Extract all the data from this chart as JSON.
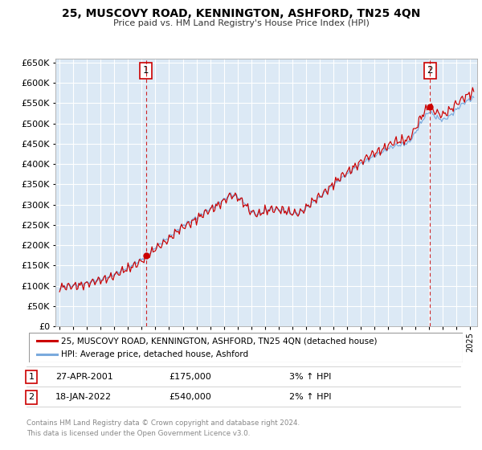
{
  "title": "25, MUSCOVY ROAD, KENNINGTON, ASHFORD, TN25 4QN",
  "subtitle": "Price paid vs. HM Land Registry's House Price Index (HPI)",
  "legend_line1": "25, MUSCOVY ROAD, KENNINGTON, ASHFORD, TN25 4QN (detached house)",
  "legend_line2": "HPI: Average price, detached house, Ashford",
  "transaction1_date": "27-APR-2001",
  "transaction1_price": "£175,000",
  "transaction1_hpi": "3% ↑ HPI",
  "transaction2_date": "18-JAN-2022",
  "transaction2_price": "£540,000",
  "transaction2_hpi": "2% ↑ HPI",
  "ylim": [
    0,
    660000
  ],
  "yticks": [
    0,
    50000,
    100000,
    150000,
    200000,
    250000,
    300000,
    350000,
    400000,
    450000,
    500000,
    550000,
    600000,
    650000
  ],
  "xlim_start": 1994.7,
  "xlim_end": 2025.5,
  "bg_color": "#dce9f5",
  "line_color_red": "#cc0000",
  "line_color_blue": "#7aaadd",
  "grid_color": "#ffffff",
  "footer_text": "Contains HM Land Registry data © Crown copyright and database right 2024.\nThis data is licensed under the Open Government Licence v3.0.",
  "sale1_year": 2001.32,
  "sale1_price": 175000,
  "sale2_year": 2022.05,
  "sale2_price": 540000
}
